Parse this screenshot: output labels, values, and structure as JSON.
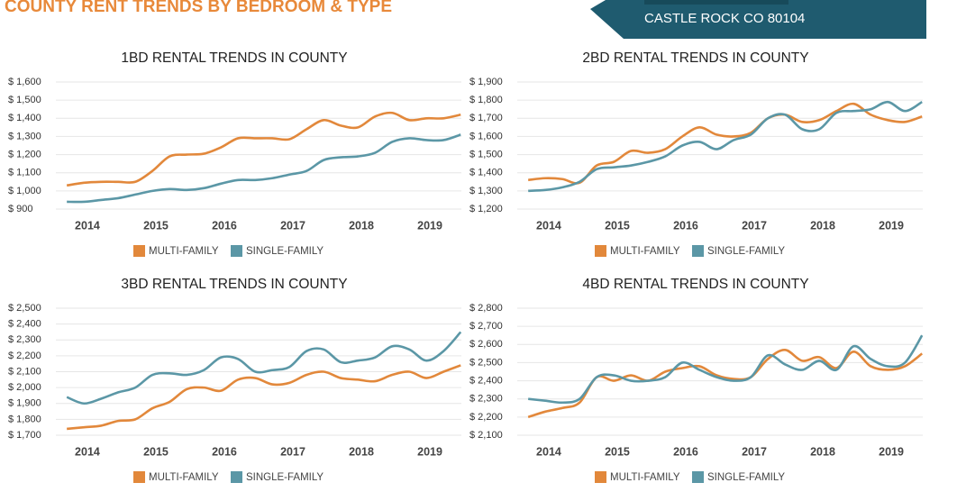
{
  "header": {
    "title": "COUNTY RENT TRENDS BY BEDROOM & TYPE",
    "location": "CASTLE ROCK CO 80104"
  },
  "chart_data": [
    {
      "type": "line",
      "title": "1BD RENTAL TRENDS IN COUNTY",
      "x": [
        2013.7,
        2013.95,
        2014.2,
        2014.45,
        2014.7,
        2014.95,
        2015.2,
        2015.45,
        2015.7,
        2015.95,
        2016.2,
        2016.45,
        2016.7,
        2016.95,
        2017.2,
        2017.45,
        2017.7,
        2017.95,
        2018.2,
        2018.45,
        2018.7,
        2018.95,
        2019.2,
        2019.45
      ],
      "xlim": [
        2013.54,
        2019.46
      ],
      "xticks": [
        2014,
        2015,
        2016,
        2017,
        2018,
        2019
      ],
      "ylim": [
        900,
        1600
      ],
      "yticks": [
        {
          "value": 900,
          "label": "$ 900"
        },
        {
          "value": 1000,
          "label": "$ 1,000"
        },
        {
          "value": 1100,
          "label": "$ 1,100"
        },
        {
          "value": 1200,
          "label": "$ 1,200"
        },
        {
          "value": 1300,
          "label": "$ 1,300"
        },
        {
          "value": 1400,
          "label": "$ 1,400"
        },
        {
          "value": 1500,
          "label": "$ 1,500"
        },
        {
          "value": 1600,
          "label": "$ 1,600"
        }
      ],
      "grid": true,
      "series": [
        {
          "name": "MULTI-FAMILY",
          "color": "#e2883b",
          "values": [
            1030,
            1045,
            1050,
            1050,
            1050,
            1110,
            1190,
            1200,
            1205,
            1240,
            1290,
            1290,
            1290,
            1285,
            1340,
            1390,
            1360,
            1350,
            1410,
            1430,
            1390,
            1400,
            1400,
            1420
          ]
        },
        {
          "name": "SINGLE-FAMILY",
          "color": "#5b97a6",
          "values": [
            940,
            940,
            950,
            960,
            980,
            1000,
            1010,
            1005,
            1015,
            1040,
            1060,
            1060,
            1070,
            1090,
            1110,
            1170,
            1185,
            1190,
            1210,
            1270,
            1290,
            1280,
            1280,
            1310
          ]
        }
      ]
    },
    {
      "type": "line",
      "title": "2BD RENTAL TRENDS IN COUNTY",
      "x": [
        2013.7,
        2013.95,
        2014.2,
        2014.45,
        2014.7,
        2014.95,
        2015.2,
        2015.45,
        2015.7,
        2015.95,
        2016.2,
        2016.45,
        2016.7,
        2016.95,
        2017.2,
        2017.45,
        2017.7,
        2017.95,
        2018.2,
        2018.45,
        2018.7,
        2018.95,
        2019.2,
        2019.45
      ],
      "xlim": [
        2013.54,
        2019.46
      ],
      "xticks": [
        2014,
        2015,
        2016,
        2017,
        2018,
        2019
      ],
      "ylim": [
        1200,
        1900
      ],
      "yticks": [
        {
          "value": 1200,
          "label": "$ 1,200"
        },
        {
          "value": 1300,
          "label": "$ 1,300"
        },
        {
          "value": 1400,
          "label": "$ 1,400"
        },
        {
          "value": 1500,
          "label": "$ 1,500"
        },
        {
          "value": 1600,
          "label": "$ 1,600"
        },
        {
          "value": 1700,
          "label": "$ 1,700"
        },
        {
          "value": 1800,
          "label": "$ 1,800"
        },
        {
          "value": 1900,
          "label": "$ 1,900"
        }
      ],
      "grid": true,
      "series": [
        {
          "name": "MULTI-FAMILY",
          "color": "#e2883b",
          "values": [
            1360,
            1370,
            1365,
            1345,
            1440,
            1460,
            1520,
            1510,
            1530,
            1600,
            1650,
            1610,
            1600,
            1620,
            1700,
            1720,
            1680,
            1690,
            1740,
            1780,
            1720,
            1690,
            1680,
            1710
          ]
        },
        {
          "name": "SINGLE-FAMILY",
          "color": "#5b97a6",
          "values": [
            1300,
            1305,
            1320,
            1350,
            1420,
            1430,
            1440,
            1460,
            1490,
            1550,
            1570,
            1530,
            1580,
            1610,
            1700,
            1720,
            1640,
            1640,
            1730,
            1740,
            1750,
            1790,
            1740,
            1790
          ]
        }
      ]
    },
    {
      "type": "line",
      "title": "3BD RENTAL TRENDS IN COUNTY",
      "x": [
        2013.7,
        2013.95,
        2014.2,
        2014.45,
        2014.7,
        2014.95,
        2015.2,
        2015.45,
        2015.7,
        2015.95,
        2016.2,
        2016.45,
        2016.7,
        2016.95,
        2017.2,
        2017.45,
        2017.7,
        2017.95,
        2018.2,
        2018.45,
        2018.7,
        2018.95,
        2019.2,
        2019.45
      ],
      "xlim": [
        2013.54,
        2019.46
      ],
      "xticks": [
        2014,
        2015,
        2016,
        2017,
        2018,
        2019
      ],
      "ylim": [
        1700,
        2500
      ],
      "yticks": [
        {
          "value": 1700,
          "label": "$ 1,700"
        },
        {
          "value": 1800,
          "label": "$ 1,800"
        },
        {
          "value": 1900,
          "label": "$ 1,900"
        },
        {
          "value": 2000,
          "label": "$ 2,000"
        },
        {
          "value": 2100,
          "label": "$ 2,100"
        },
        {
          "value": 2200,
          "label": "$ 2,200"
        },
        {
          "value": 2300,
          "label": "$ 2,300"
        },
        {
          "value": 2400,
          "label": "$ 2,400"
        },
        {
          "value": 2500,
          "label": "$ 2,500"
        }
      ],
      "grid": true,
      "series": [
        {
          "name": "MULTI-FAMILY",
          "color": "#e2883b",
          "values": [
            1740,
            1750,
            1760,
            1790,
            1800,
            1870,
            1910,
            1990,
            2000,
            1980,
            2050,
            2060,
            2020,
            2030,
            2080,
            2100,
            2060,
            2050,
            2040,
            2080,
            2100,
            2060,
            2100,
            2140
          ]
        },
        {
          "name": "SINGLE-FAMILY",
          "color": "#5b97a6",
          "values": [
            1940,
            1900,
            1930,
            1970,
            2000,
            2080,
            2090,
            2080,
            2110,
            2190,
            2180,
            2100,
            2110,
            2130,
            2230,
            2240,
            2160,
            2170,
            2190,
            2260,
            2240,
            2170,
            2230,
            2350
          ]
        }
      ]
    },
    {
      "type": "line",
      "title": "4BD RENTAL TRENDS IN COUNTY",
      "x": [
        2013.7,
        2013.95,
        2014.2,
        2014.45,
        2014.7,
        2014.95,
        2015.2,
        2015.45,
        2015.7,
        2015.95,
        2016.2,
        2016.45,
        2016.7,
        2016.95,
        2017.2,
        2017.45,
        2017.7,
        2017.95,
        2018.2,
        2018.45,
        2018.7,
        2018.95,
        2019.2,
        2019.45
      ],
      "xlim": [
        2013.54,
        2019.46
      ],
      "xticks": [
        2014,
        2015,
        2016,
        2017,
        2018,
        2019
      ],
      "ylim": [
        2100,
        2800
      ],
      "yticks": [
        {
          "value": 2100,
          "label": "$ 2,100"
        },
        {
          "value": 2200,
          "label": "$ 2,200"
        },
        {
          "value": 2300,
          "label": "$ 2,300"
        },
        {
          "value": 2400,
          "label": "$ 2,400"
        },
        {
          "value": 2500,
          "label": "$ 2,500"
        },
        {
          "value": 2600,
          "label": "$ 2,600"
        },
        {
          "value": 2700,
          "label": "$ 2,700"
        },
        {
          "value": 2800,
          "label": "$ 2,800"
        }
      ],
      "grid": true,
      "series": [
        {
          "name": "MULTI-FAMILY",
          "color": "#e2883b",
          "values": [
            2200,
            2230,
            2250,
            2280,
            2420,
            2400,
            2430,
            2400,
            2450,
            2470,
            2480,
            2430,
            2410,
            2420,
            2520,
            2570,
            2510,
            2530,
            2470,
            2560,
            2480,
            2460,
            2480,
            2550
          ]
        },
        {
          "name": "SINGLE-FAMILY",
          "color": "#5b97a6",
          "values": [
            2300,
            2290,
            2280,
            2300,
            2420,
            2430,
            2400,
            2400,
            2420,
            2500,
            2460,
            2420,
            2400,
            2420,
            2540,
            2490,
            2460,
            2510,
            2460,
            2590,
            2520,
            2480,
            2500,
            2650
          ]
        }
      ]
    }
  ]
}
